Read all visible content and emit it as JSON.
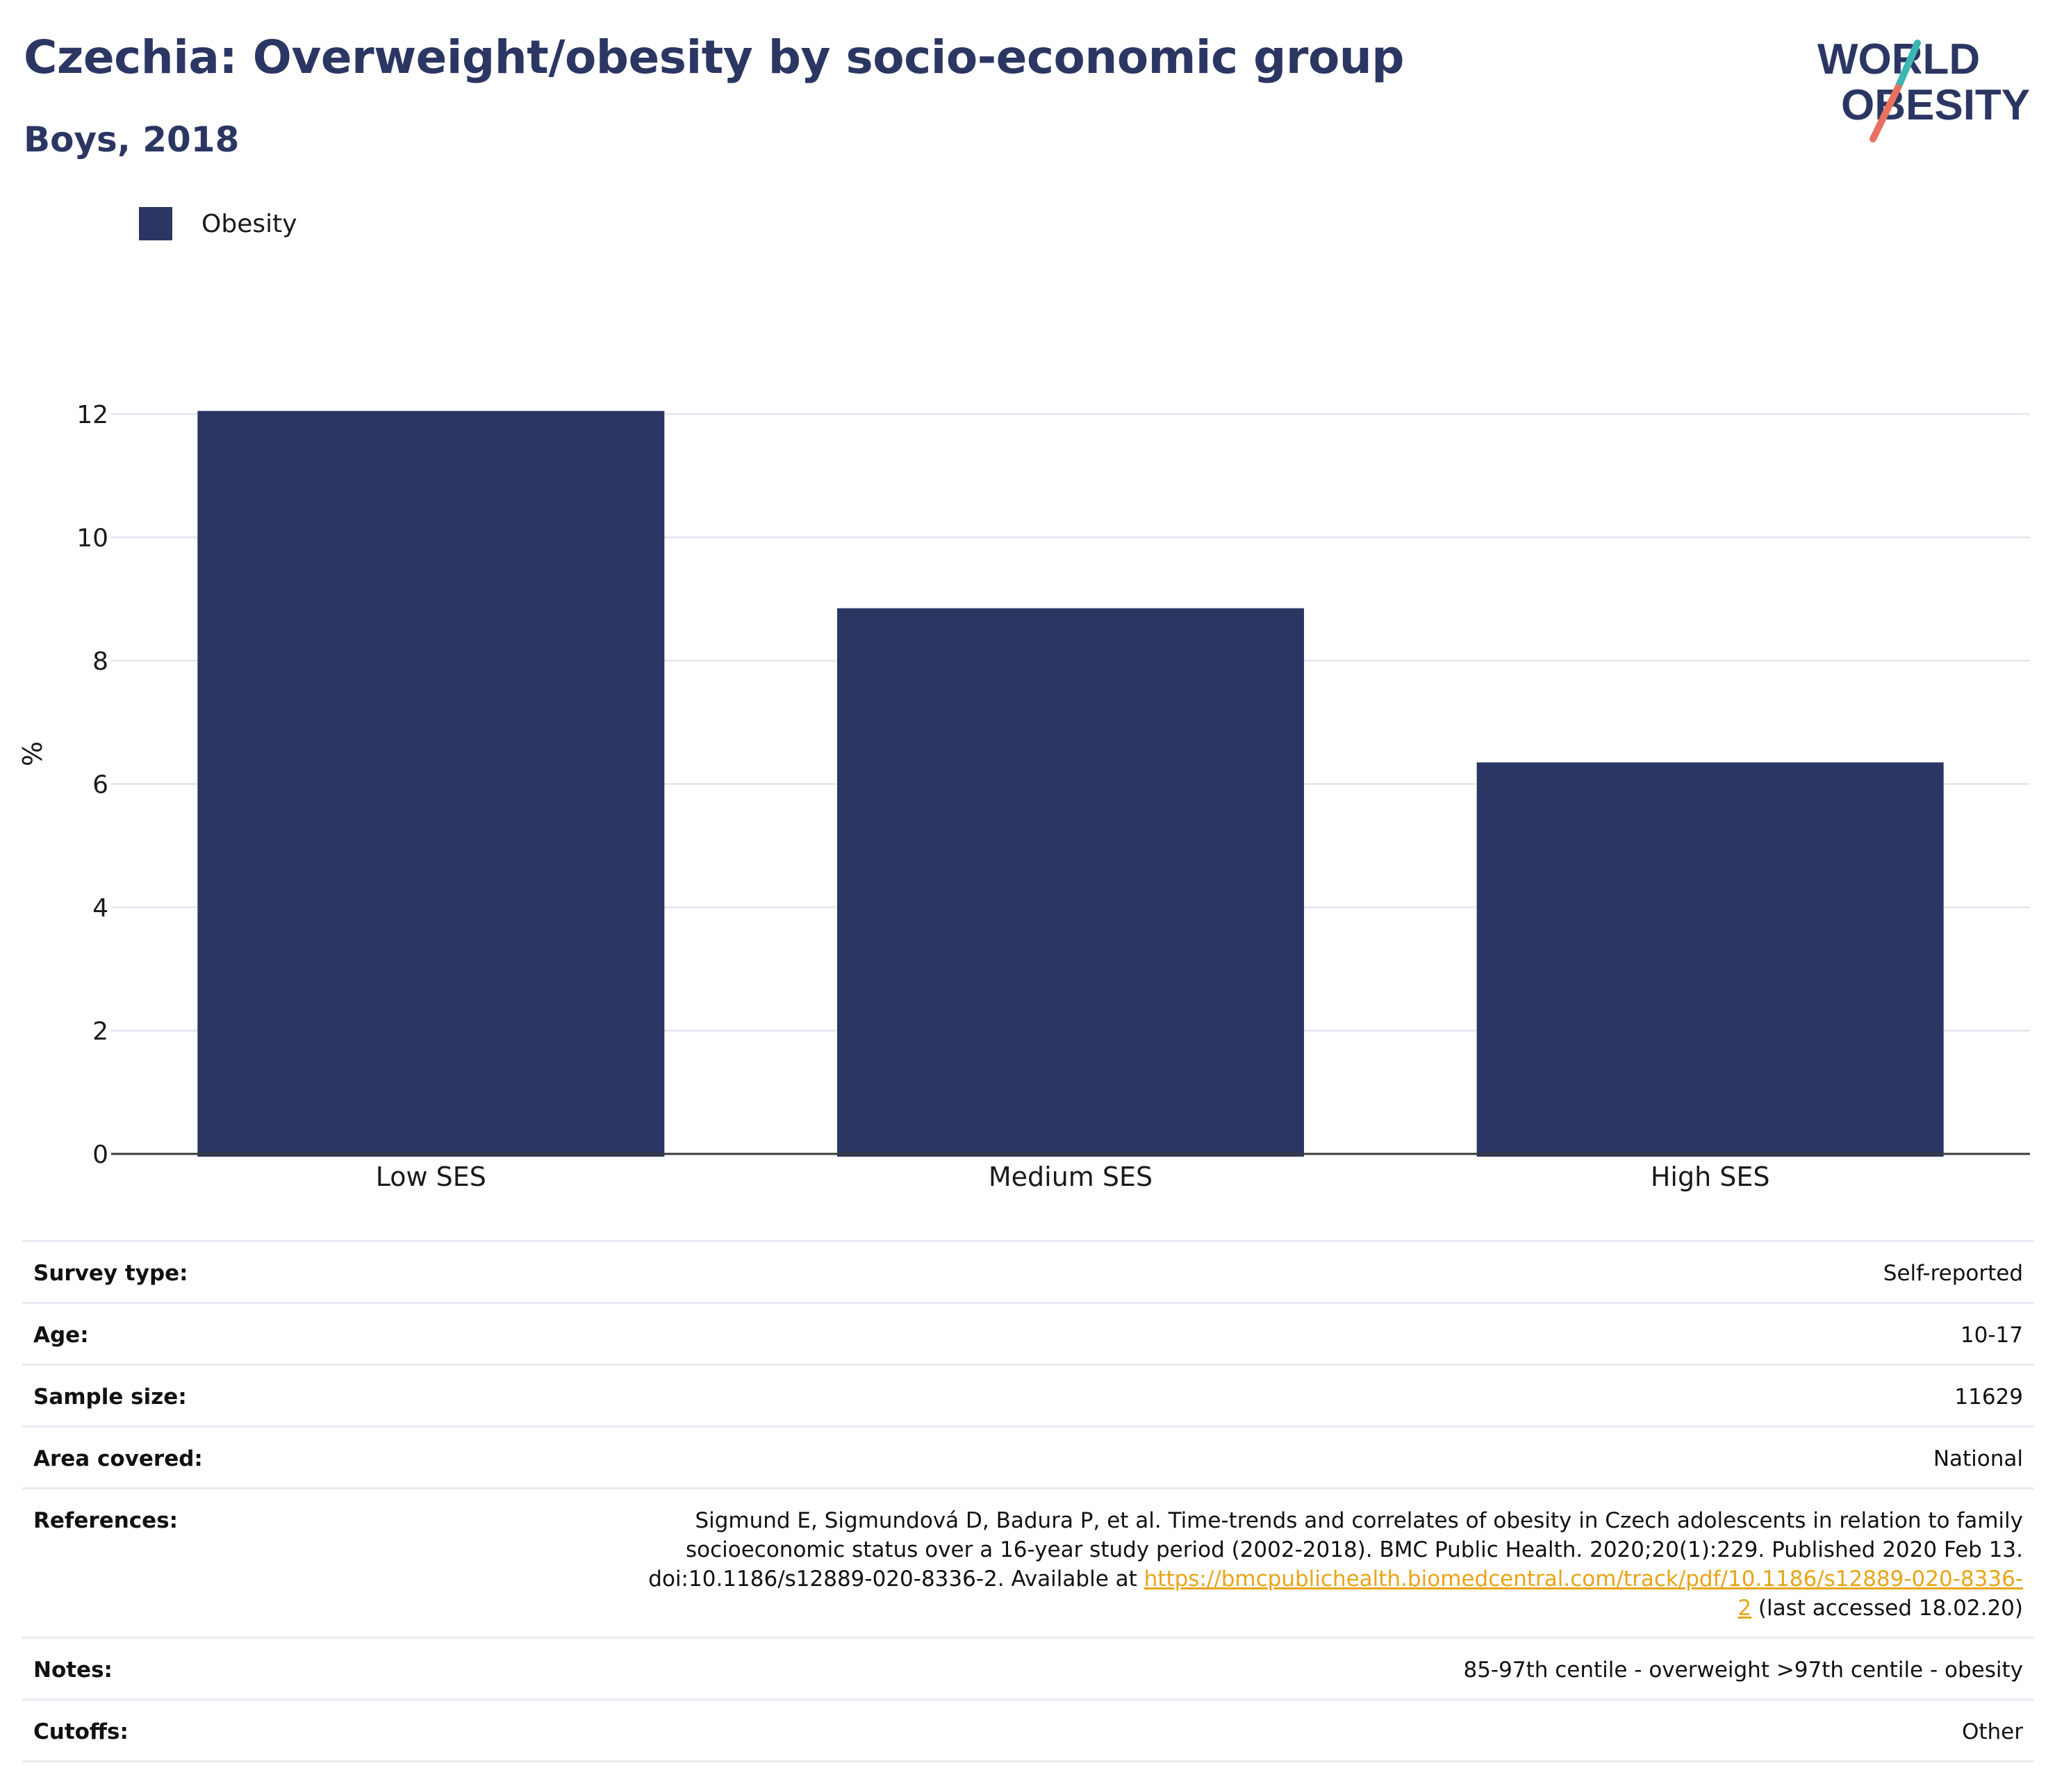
{
  "title": "Czechia: Overweight/obesity by socio-economic group",
  "subtitle": "Boys, 2018",
  "logo": {
    "line1": "WORLD",
    "line2": "OBESITY"
  },
  "colors": {
    "bar": "#2b3663",
    "title": "#2b3663",
    "link": "#e8a516",
    "grid": "#e6e9f0"
  },
  "chart_data": {
    "type": "bar",
    "categories": [
      "Low SES",
      "Medium SES",
      "High SES"
    ],
    "series": [
      {
        "name": "Obesity",
        "values": [
          12.05,
          8.85,
          6.35
        ]
      }
    ],
    "ylabel": "%",
    "xlabel": "",
    "ylim": [
      0,
      12.8
    ],
    "yticks": [
      0,
      2,
      4,
      6,
      8,
      10,
      12
    ],
    "grid": true,
    "legend": "top-left"
  },
  "meta": {
    "survey_type": {
      "label": "Survey type:",
      "value": "Self-reported"
    },
    "age": {
      "label": "Age:",
      "value": "10-17"
    },
    "sample_size": {
      "label": "Sample size:",
      "value": "11629"
    },
    "area_covered": {
      "label": "Area covered:",
      "value": "National"
    },
    "references": {
      "label": "References:",
      "text_before": "Sigmund E, Sigmundová D, Badura P, et al. Time-trends and correlates of obesity in Czech adolescents in relation to family socioeconomic status over a 16-year study period (2002-2018). BMC Public Health. 2020;20(1):229. Published 2020 Feb 13. doi:10.1186/s12889-020-8336-2. Available at ",
      "link": "https://bmcpublichealth.biomedcentral.com/track/pdf/10.1186/s12889-020-8336-2",
      "text_after": " (last accessed 18.02.20)"
    },
    "notes": {
      "label": "Notes:",
      "value": "85-97th centile - overweight >97th centile - obesity"
    },
    "cutoffs": {
      "label": "Cutoffs:",
      "value": "Other"
    }
  }
}
